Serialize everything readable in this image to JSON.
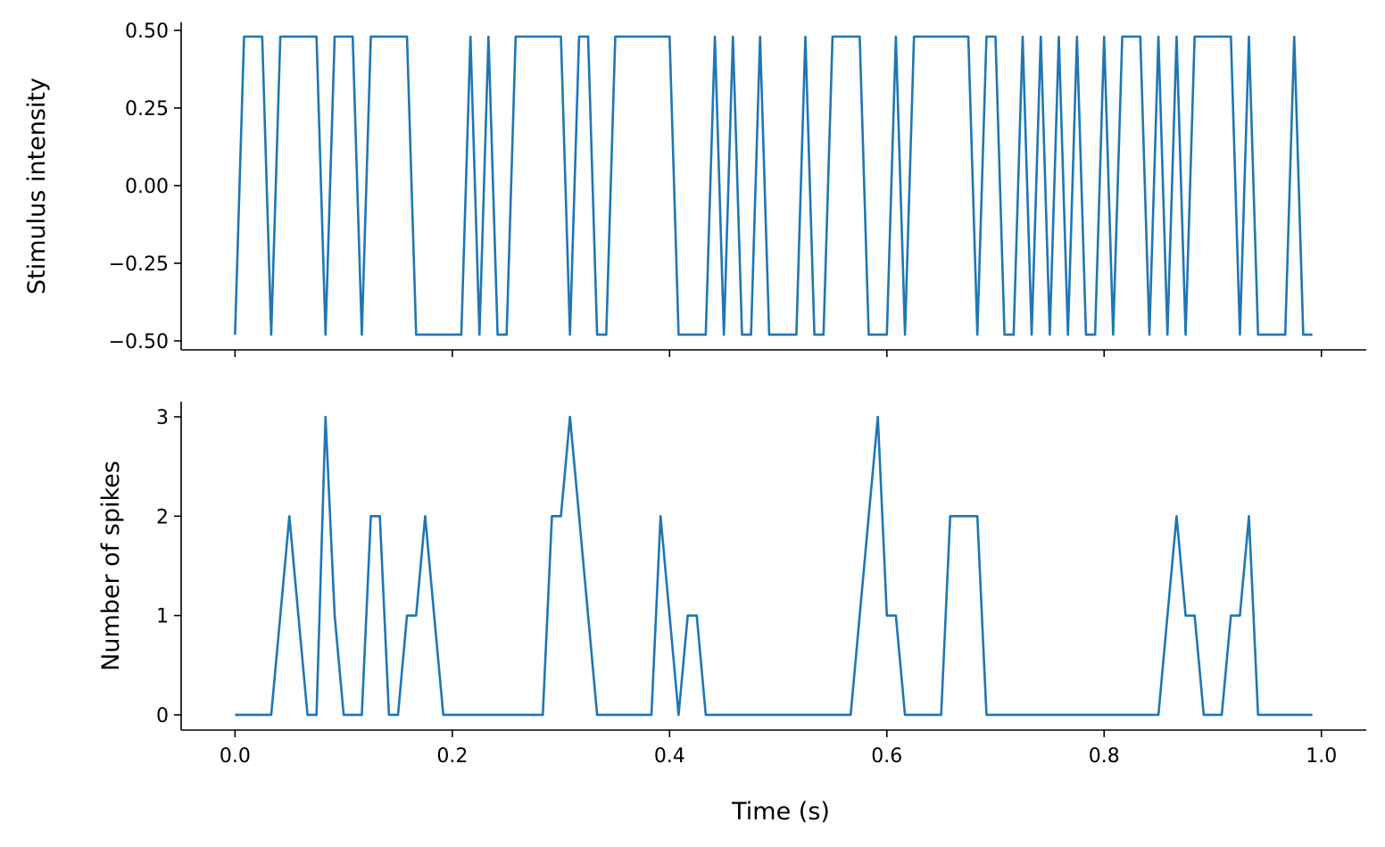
{
  "chart_data": [
    {
      "type": "line",
      "ylabel": "Stimulus intensity",
      "color": "#1f77b4",
      "x": [
        0,
        0.0083,
        0.0167,
        0.025,
        0.0333,
        0.0417,
        0.05,
        0.0583,
        0.0667,
        0.075,
        0.0833,
        0.0917,
        0.1,
        0.1083,
        0.1167,
        0.125,
        0.1333,
        0.1417,
        0.15,
        0.1583,
        0.1667,
        0.175,
        0.1833,
        0.1917,
        0.2,
        0.2083,
        0.2167,
        0.225,
        0.2333,
        0.2417,
        0.25,
        0.2583,
        0.2667,
        0.275,
        0.2833,
        0.2917,
        0.3,
        0.3083,
        0.3167,
        0.325,
        0.3333,
        0.3417,
        0.35,
        0.3583,
        0.3667,
        0.375,
        0.3833,
        0.3917,
        0.4,
        0.4083,
        0.4167,
        0.425,
        0.4333,
        0.4417,
        0.45,
        0.4583,
        0.4667,
        0.475,
        0.4833,
        0.4917,
        0.5,
        0.5083,
        0.5167,
        0.525,
        0.5333,
        0.5417,
        0.55,
        0.5583,
        0.5667,
        0.575,
        0.5833,
        0.5917,
        0.6,
        0.6083,
        0.6167,
        0.625,
        0.6333,
        0.6417,
        0.65,
        0.6583,
        0.6667,
        0.675,
        0.6833,
        0.6917,
        0.7,
        0.7083,
        0.7167,
        0.725,
        0.7333,
        0.7417,
        0.75,
        0.7583,
        0.7667,
        0.775,
        0.7833,
        0.7917,
        0.8,
        0.8083,
        0.8167,
        0.825,
        0.8333,
        0.8417,
        0.85,
        0.8583,
        0.8667,
        0.875,
        0.8833,
        0.8917,
        0.9,
        0.9083,
        0.9167,
        0.925,
        0.9333,
        0.9417,
        0.95,
        0.9583,
        0.9667,
        0.975,
        0.9833,
        0.9917
      ],
      "values": [
        -0.48,
        0.48,
        0.48,
        0.48,
        -0.48,
        0.48,
        0.48,
        0.48,
        0.48,
        0.48,
        -0.48,
        0.48,
        0.48,
        0.48,
        -0.48,
        0.48,
        0.48,
        0.48,
        0.48,
        0.48,
        -0.48,
        -0.48,
        -0.48,
        -0.48,
        -0.48,
        -0.48,
        0.48,
        -0.48,
        0.48,
        -0.48,
        -0.48,
        0.48,
        0.48,
        0.48,
        0.48,
        0.48,
        0.48,
        -0.48,
        0.48,
        0.48,
        -0.48,
        -0.48,
        0.48,
        0.48,
        0.48,
        0.48,
        0.48,
        0.48,
        0.48,
        -0.48,
        -0.48,
        -0.48,
        -0.48,
        0.48,
        -0.48,
        0.48,
        -0.48,
        -0.48,
        0.48,
        -0.48,
        -0.48,
        -0.48,
        -0.48,
        0.48,
        -0.48,
        -0.48,
        0.48,
        0.48,
        0.48,
        0.48,
        -0.48,
        -0.48,
        -0.48,
        0.48,
        -0.48,
        0.48,
        0.48,
        0.48,
        0.48,
        0.48,
        0.48,
        0.48,
        -0.48,
        0.48,
        0.48,
        -0.48,
        -0.48,
        0.48,
        -0.48,
        0.48,
        -0.48,
        0.48,
        -0.48,
        0.48,
        -0.48,
        -0.48,
        0.48,
        -0.48,
        0.48,
        0.48,
        0.48,
        -0.48,
        0.48,
        -0.48,
        0.48,
        -0.48,
        0.48,
        0.48,
        0.48,
        0.48,
        0.48,
        -0.48,
        0.48,
        -0.48,
        -0.48,
        -0.48,
        -0.48,
        0.48,
        -0.48,
        -0.48
      ],
      "xlim": [
        -0.0496,
        1.0413
      ],
      "xticks": [
        0,
        0.2,
        0.4,
        0.6,
        0.8,
        1
      ],
      "ylim": [
        -0.529,
        0.526
      ],
      "yticks": [
        {
          "value": -0.5,
          "label": "−0.50"
        },
        {
          "value": -0.25,
          "label": "−0.25"
        },
        {
          "value": 0,
          "label": "0.00"
        },
        {
          "value": 0.25,
          "label": "0.25"
        },
        {
          "value": 0.5,
          "label": "0.50"
        }
      ]
    },
    {
      "type": "line",
      "ylabel": "Number of spikes",
      "xlabel": "Time (s)",
      "color": "#1f77b4",
      "x": [
        0,
        0.0083,
        0.0167,
        0.025,
        0.0333,
        0.0417,
        0.05,
        0.0583,
        0.0667,
        0.075,
        0.0833,
        0.0917,
        0.1,
        0.1083,
        0.1167,
        0.125,
        0.1333,
        0.1417,
        0.15,
        0.1583,
        0.1667,
        0.175,
        0.1833,
        0.1917,
        0.2,
        0.2083,
        0.2167,
        0.225,
        0.2333,
        0.2417,
        0.25,
        0.2583,
        0.2667,
        0.275,
        0.2833,
        0.2917,
        0.3,
        0.3083,
        0.3167,
        0.325,
        0.3333,
        0.3417,
        0.35,
        0.3583,
        0.3667,
        0.375,
        0.3833,
        0.3917,
        0.4,
        0.4083,
        0.4167,
        0.425,
        0.4333,
        0.4417,
        0.45,
        0.4583,
        0.4667,
        0.475,
        0.4833,
        0.4917,
        0.5,
        0.5083,
        0.5167,
        0.525,
        0.5333,
        0.5417,
        0.55,
        0.5583,
        0.5667,
        0.575,
        0.5833,
        0.5917,
        0.6,
        0.6083,
        0.6167,
        0.625,
        0.6333,
        0.6417,
        0.65,
        0.6583,
        0.6667,
        0.675,
        0.6833,
        0.6917,
        0.7,
        0.7083,
        0.7167,
        0.725,
        0.7333,
        0.7417,
        0.75,
        0.7583,
        0.7667,
        0.775,
        0.7833,
        0.7917,
        0.8,
        0.8083,
        0.8167,
        0.825,
        0.8333,
        0.8417,
        0.85,
        0.8583,
        0.8667,
        0.875,
        0.8833,
        0.8917,
        0.9,
        0.9083,
        0.9167,
        0.925,
        0.9333,
        0.9417,
        0.95,
        0.9583,
        0.9667,
        0.975,
        0.9833,
        0.9917
      ],
      "values": [
        0,
        0,
        0,
        0,
        0,
        1,
        2,
        1,
        0,
        0,
        3,
        1,
        0,
        0,
        0,
        2,
        2,
        0,
        0,
        1,
        1,
        2,
        1,
        0,
        0,
        0,
        0,
        0,
        0,
        0,
        0,
        0,
        0,
        0,
        0,
        2,
        2,
        3,
        2,
        1,
        0,
        0,
        0,
        0,
        0,
        0,
        0,
        2,
        1,
        0,
        1,
        1,
        0,
        0,
        0,
        0,
        0,
        0,
        0,
        0,
        0,
        0,
        0,
        0,
        0,
        0,
        0,
        0,
        0,
        1,
        2,
        3,
        1,
        1,
        0,
        0,
        0,
        0,
        0,
        2,
        2,
        2,
        2,
        0,
        0,
        0,
        0,
        0,
        0,
        0,
        0,
        0,
        0,
        0,
        0,
        0,
        0,
        0,
        0,
        0,
        0,
        0,
        0,
        1,
        2,
        1,
        1,
        0,
        0,
        0,
        1,
        1,
        2,
        0,
        0,
        0,
        0,
        0,
        0,
        0
      ],
      "xlim": [
        -0.0496,
        1.0413
      ],
      "xticks": [
        {
          "value": 0,
          "label": "0.0"
        },
        {
          "value": 0.2,
          "label": "0.2"
        },
        {
          "value": 0.4,
          "label": "0.4"
        },
        {
          "value": 0.6,
          "label": "0.6"
        },
        {
          "value": 0.8,
          "label": "0.8"
        },
        {
          "value": 1,
          "label": "1.0"
        }
      ],
      "ylim": [
        -0.153,
        3.153
      ],
      "yticks": [
        0,
        1,
        2,
        3
      ]
    }
  ]
}
